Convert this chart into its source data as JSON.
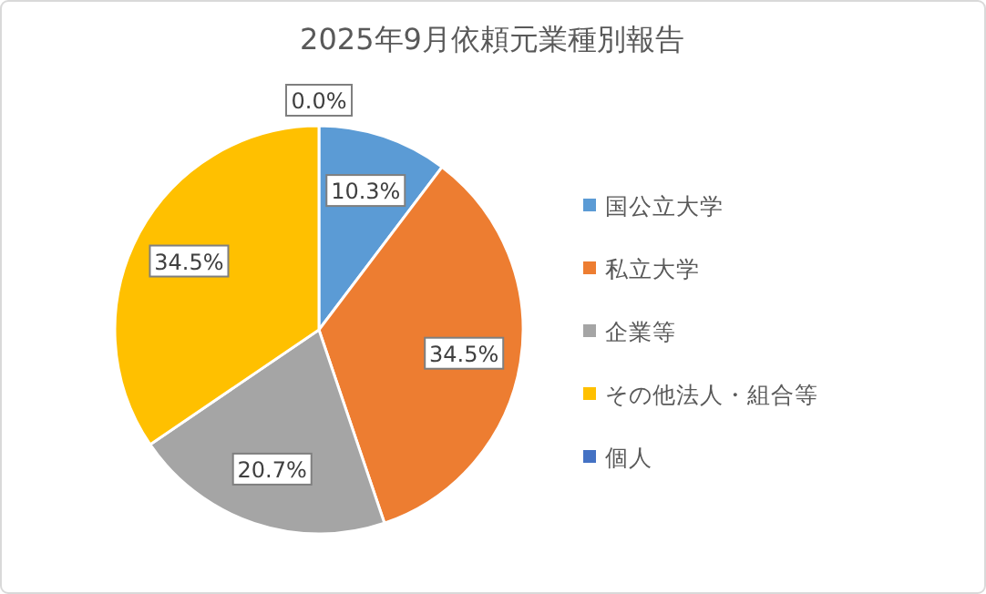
{
  "chart_data": {
    "type": "pie",
    "title": "2025年9月依頼元業種別報告",
    "categories": [
      "国公立大学",
      "私立大学",
      "企業等",
      "その他法人・組合等",
      "個人"
    ],
    "values": [
      10.3,
      34.5,
      20.7,
      34.5,
      0.0
    ],
    "colors": [
      "#5b9bd5",
      "#ed7d31",
      "#a5a5a5",
      "#ffc000",
      "#4472c4"
    ],
    "value_labels": [
      "10.3%",
      "34.5%",
      "20.7%",
      "34.5%",
      "0.0%"
    ],
    "legend": "right"
  }
}
